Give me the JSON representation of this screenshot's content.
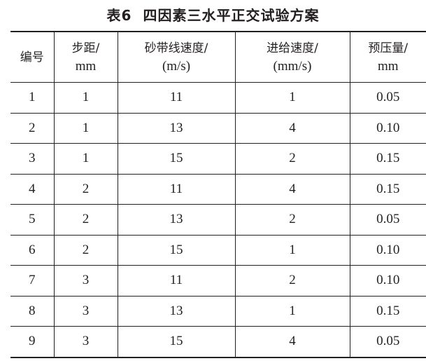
{
  "title": {
    "label": "表6",
    "text": "四因素三水平正交试验方案"
  },
  "table": {
    "headers": [
      {
        "l1": "编号",
        "l2": ""
      },
      {
        "l1": "步距/",
        "l2": "mm"
      },
      {
        "l1": "砂带线速度/",
        "l2": "(m/s)"
      },
      {
        "l1": "进给速度/",
        "l2": "(mm/s)"
      },
      {
        "l1": "预压量/",
        "l2": "mm"
      }
    ],
    "rows": [
      [
        "1",
        "1",
        "11",
        "1",
        "0.05"
      ],
      [
        "2",
        "1",
        "13",
        "4",
        "0.10"
      ],
      [
        "3",
        "1",
        "15",
        "2",
        "0.15"
      ],
      [
        "4",
        "2",
        "11",
        "4",
        "0.15"
      ],
      [
        "5",
        "2",
        "13",
        "2",
        "0.05"
      ],
      [
        "6",
        "2",
        "15",
        "1",
        "0.10"
      ],
      [
        "7",
        "3",
        "11",
        "2",
        "0.10"
      ],
      [
        "8",
        "3",
        "13",
        "1",
        "0.15"
      ],
      [
        "9",
        "3",
        "15",
        "4",
        "0.05"
      ]
    ]
  }
}
